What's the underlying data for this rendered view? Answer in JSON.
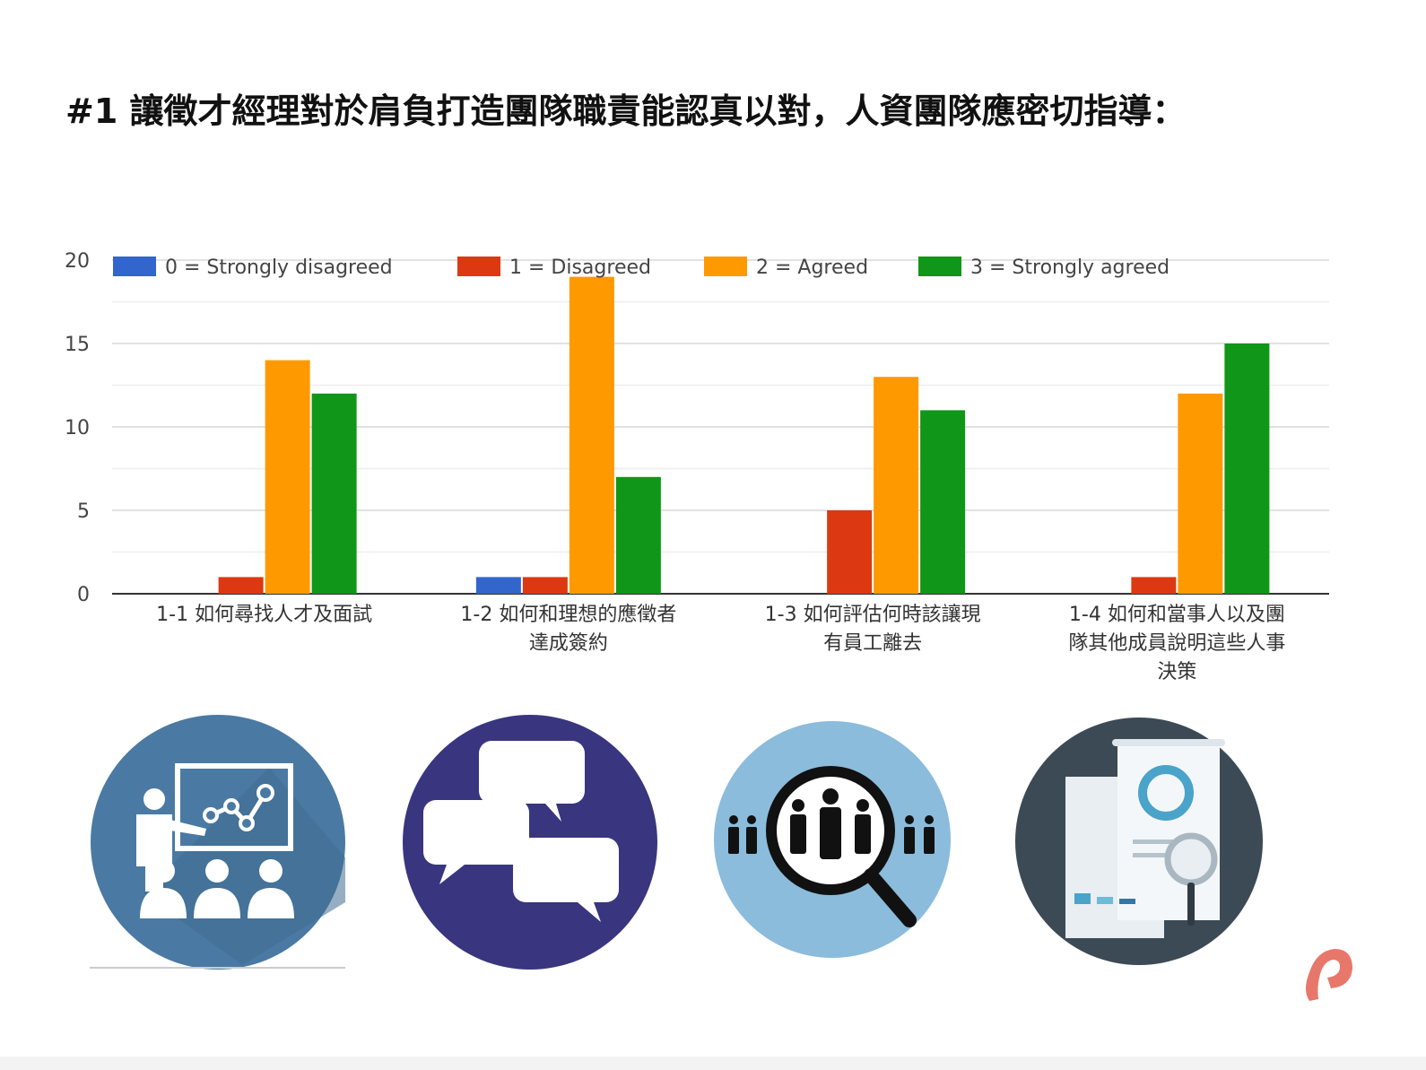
{
  "page": {
    "title": "#1 讓徵才經理對於肩負打造團隊職責能認真以對，人資團隊應密切指導："
  },
  "colors": {
    "strongly_disagreed": "#3366cc",
    "disagreed": "#dc3912",
    "agreed": "#ff9900",
    "strongly_agreed": "#109618",
    "axis": "#333333",
    "grid_major": "#d9d9d9",
    "grid_minor": "#eeeeee",
    "icon1_bg": "#4a7aa3",
    "icon2_bg": "#39357f",
    "icon3_bg": "#8bbcdc",
    "icon4_bg": "#3c4a55",
    "logo": "#e8776b"
  },
  "icons": [
    "presentation-icon",
    "chat-bubbles-icon",
    "people-search-icon",
    "report-analysis-icon"
  ],
  "chart_data": {
    "type": "bar",
    "categories": [
      [
        "1-1 如何尋找人才及面試"
      ],
      [
        "1-2 如何和理想的應徵者",
        "達成簽約"
      ],
      [
        "1-3 如何評估何時該讓現",
        "有員工離去"
      ],
      [
        "1-4 如何和當事人以及團",
        "隊其他成員說明這些人事",
        "決策"
      ]
    ],
    "series": [
      {
        "name": "0 = Strongly disagreed",
        "color": "#3366cc",
        "values": [
          0,
          1,
          0,
          0
        ]
      },
      {
        "name": "1 = Disagreed",
        "color": "#dc3912",
        "values": [
          1,
          1,
          5,
          1
        ]
      },
      {
        "name": "2 = Agreed",
        "color": "#ff9900",
        "values": [
          14,
          19,
          13,
          12
        ]
      },
      {
        "name": "3 = Strongly agreed",
        "color": "#109618",
        "values": [
          12,
          7,
          11,
          15
        ]
      }
    ],
    "yticks": [
      0,
      5,
      10,
      15,
      20
    ],
    "ylim": [
      0,
      20
    ],
    "legend": "top",
    "grid": true
  }
}
